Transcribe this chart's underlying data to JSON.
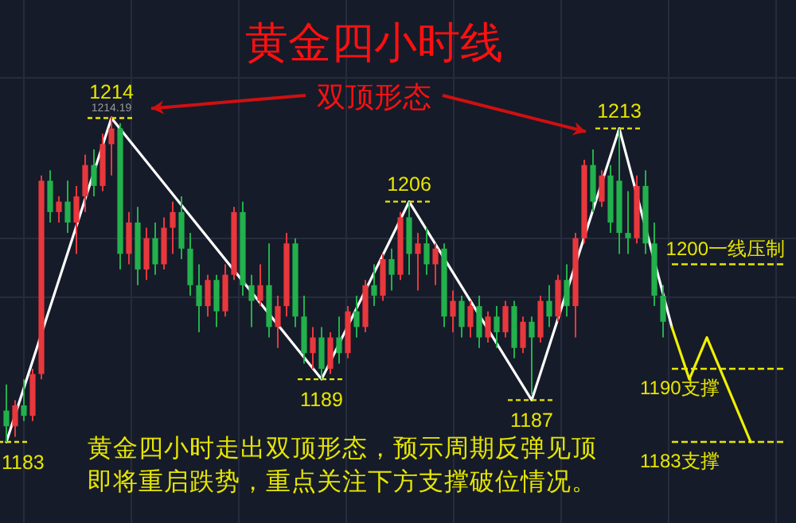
{
  "chart_data": {
    "type": "candlestick",
    "title": "黄金四小时线",
    "grid": true,
    "tick_labels": false,
    "categories": [
      null,
      null,
      null,
      null,
      null,
      null,
      null,
      null,
      null,
      null,
      null,
      null,
      null,
      null,
      null,
      null,
      null,
      null,
      null,
      null,
      null,
      null,
      null,
      null,
      null,
      null,
      null,
      null,
      null,
      null,
      null,
      null,
      null,
      null,
      null,
      null,
      null,
      null,
      null,
      null,
      null,
      null,
      null,
      null,
      null,
      null,
      null,
      null,
      null,
      null,
      null,
      null,
      null,
      null,
      null,
      null,
      null,
      null,
      null,
      null,
      null,
      null,
      null,
      null,
      null,
      null,
      null,
      null,
      null,
      null,
      null,
      null,
      null,
      null,
      null,
      null,
      null,
      null,
      null,
      null,
      null,
      null,
      null,
      null,
      null,
      null,
      null,
      null
    ],
    "ohlc": [
      [
        1186,
        1188.5,
        1183,
        1184.5
      ],
      [
        1184.5,
        1187,
        1183.5,
        1186.5
      ],
      [
        1186.5,
        1189,
        1185,
        1185.5
      ],
      [
        1185.5,
        1190,
        1185,
        1189.5
      ],
      [
        1189.5,
        1208.5,
        1189,
        1208
      ],
      [
        1208,
        1209,
        1204,
        1205
      ],
      [
        1205,
        1206.5,
        1204,
        1206
      ],
      [
        1206,
        1208,
        1203,
        1204
      ],
      [
        1204,
        1207.5,
        1201,
        1206.5
      ],
      [
        1206.5,
        1210.5,
        1205,
        1209.5
      ],
      [
        1209.5,
        1211,
        1206.5,
        1207.5
      ],
      [
        1207.5,
        1212.5,
        1207,
        1211.5
      ],
      [
        1211.5,
        1214.19,
        1208.5,
        1213
      ],
      [
        1213,
        1213.5,
        1199.5,
        1201
      ],
      [
        1201,
        1205,
        1200,
        1204
      ],
      [
        1204,
        1205.5,
        1198,
        1199.5
      ],
      [
        1199.5,
        1203.5,
        1198.5,
        1202.5
      ],
      [
        1202.5,
        1204,
        1199,
        1200
      ],
      [
        1200,
        1204.5,
        1199.5,
        1203.5
      ],
      [
        1203.5,
        1206,
        1201,
        1205
      ],
      [
        1205,
        1206.5,
        1200.5,
        1201.5
      ],
      [
        1201.5,
        1203,
        1197,
        1198
      ],
      [
        1198,
        1200,
        1193.5,
        1196
      ],
      [
        1196,
        1199,
        1195,
        1198.5
      ],
      [
        1198.5,
        1199,
        1194,
        1195.5
      ],
      [
        1195.5,
        1200,
        1195,
        1199
      ],
      [
        1199,
        1205.5,
        1198.5,
        1205
      ],
      [
        1205,
        1206,
        1197,
        1198
      ],
      [
        1198,
        1199,
        1194,
        1196.5
      ],
      [
        1196.5,
        1200,
        1196,
        1198
      ],
      [
        1198,
        1202,
        1193,
        1194
      ],
      [
        1194,
        1197,
        1192,
        1196
      ],
      [
        1196,
        1203,
        1195,
        1202
      ],
      [
        1202,
        1202.5,
        1194,
        1195
      ],
      [
        1195,
        1197,
        1190.5,
        1191.5
      ],
      [
        1191.5,
        1194,
        1190,
        1193
      ],
      [
        1193,
        1194,
        1189,
        1190
      ],
      [
        1190,
        1193.5,
        1189.5,
        1193
      ],
      [
        1193,
        1195,
        1190.5,
        1191.5
      ],
      [
        1191.5,
        1196,
        1191,
        1195.5
      ],
      [
        1195.5,
        1197,
        1193,
        1194
      ],
      [
        1194,
        1198.5,
        1193.5,
        1198
      ],
      [
        1198,
        1200,
        1196,
        1197
      ],
      [
        1197,
        1201,
        1196.5,
        1200.5
      ],
      [
        1200.5,
        1201.5,
        1197.5,
        1199
      ],
      [
        1199,
        1205,
        1198.5,
        1204.5
      ],
      [
        1204.5,
        1206,
        1199,
        1201
      ],
      [
        1201,
        1203,
        1197.5,
        1202
      ],
      [
        1202,
        1203.5,
        1199,
        1200
      ],
      [
        1200,
        1202,
        1198,
        1201.5
      ],
      [
        1201.5,
        1202,
        1194,
        1195
      ],
      [
        1195,
        1197.5,
        1193.5,
        1196.5
      ],
      [
        1196.5,
        1197,
        1193,
        1194
      ],
      [
        1194,
        1196.5,
        1193,
        1196
      ],
      [
        1196,
        1197,
        1192,
        1193
      ],
      [
        1193,
        1195.5,
        1192.5,
        1195
      ],
      [
        1195,
        1196,
        1192,
        1193.5
      ],
      [
        1193.5,
        1196.5,
        1193,
        1196
      ],
      [
        1196,
        1196.5,
        1191,
        1192
      ],
      [
        1192,
        1195,
        1191.5,
        1194.5
      ],
      [
        1194.5,
        1195,
        1187.5,
        1193
      ],
      [
        1193,
        1197,
        1192.5,
        1196.5
      ],
      [
        1196.5,
        1198,
        1194,
        1195
      ],
      [
        1195,
        1199,
        1194.5,
        1198.5
      ],
      [
        1198.5,
        1200,
        1195,
        1196
      ],
      [
        1196,
        1203,
        1193,
        1202.5
      ],
      [
        1202.5,
        1210,
        1202,
        1209.5
      ],
      [
        1209.5,
        1211,
        1205,
        1206
      ],
      [
        1206,
        1209,
        1205.5,
        1208.5
      ],
      [
        1208.5,
        1209.5,
        1203,
        1204
      ],
      [
        1208,
        1213,
        1201,
        1203
      ],
      [
        1203,
        1207,
        1201,
        1202.5
      ],
      [
        1202.5,
        1208.5,
        1202,
        1207.5
      ],
      [
        1207.5,
        1209,
        1201,
        1202
      ],
      [
        1202,
        1204,
        1196,
        1197
      ],
      [
        1197,
        1198,
        1193,
        1194.5
      ],
      null,
      null,
      null,
      null,
      null,
      null,
      null,
      null,
      null,
      null,
      null,
      null
    ],
    "colors": [
      "#22b14c",
      "#e8383d",
      "#22b14c",
      "#e8383d",
      "#e8383d",
      "#22b14c",
      "#e8383d",
      "#22b14c",
      "#e8383d",
      "#e8383d",
      "#22b14c",
      "#e8383d",
      "#e8383d",
      "#22b14c",
      "#e8383d",
      "#22b14c",
      "#e8383d",
      "#22b14c",
      "#e8383d",
      "#e8383d",
      "#22b14c",
      "#22b14c",
      "#22b14c",
      "#e8383d",
      "#22b14c",
      "#e8383d",
      "#e8383d",
      "#22b14c",
      "#22b14c",
      "#e8383d",
      "#22b14c",
      "#e8383d",
      "#e8383d",
      "#22b14c",
      "#22b14c",
      "#e8383d",
      "#22b14c",
      "#e8383d",
      "#22b14c",
      "#e8383d",
      "#22b14c",
      "#e8383d",
      "#22b14c",
      "#e8383d",
      "#22b14c",
      "#e8383d",
      "#22b14c",
      "#e8383d",
      "#22b14c",
      "#e8383d",
      "#22b14c",
      "#e8383d",
      "#22b14c",
      "#e8383d",
      "#22b14c",
      "#e8383d",
      "#22b14c",
      "#e8383d",
      "#22b14c",
      "#e8383d",
      "#22b14c",
      "#e8383d",
      "#22b14c",
      "#e8383d",
      "#22b14c",
      "#e8383d",
      "#e8383d",
      "#22b14c",
      "#e8383d",
      "#22b14c",
      "#22b14c",
      "#22b14c",
      "#e8383d",
      "#22b14c",
      "#22b14c",
      "#22b14c",
      null,
      null,
      null,
      null,
      null,
      null,
      null,
      null,
      null,
      null,
      null,
      null
    ],
    "series": [
      {
        "type": "line",
        "color": "#ffffff",
        "values": [
          1183,
          null,
          null,
          null,
          null,
          null,
          null,
          null,
          null,
          null,
          null,
          null,
          1214,
          null,
          null,
          null,
          null,
          null,
          null,
          null,
          null,
          null,
          null,
          null,
          null,
          null,
          null,
          null,
          null,
          null,
          null,
          null,
          null,
          null,
          null,
          null,
          1189,
          null,
          null,
          null,
          null,
          null,
          null,
          null,
          null,
          null,
          1206,
          null,
          null,
          null,
          null,
          null,
          null,
          null,
          null,
          null,
          null,
          null,
          null,
          null,
          1187,
          null,
          null,
          null,
          null,
          null,
          null,
          null,
          null,
          null,
          1213,
          null,
          null,
          null,
          null,
          null,
          1194,
          null,
          null,
          null,
          null,
          null,
          null,
          null,
          null,
          null,
          null,
          null
        ],
        "value_labels": [
          "1183",
          null,
          null,
          null,
          null,
          null,
          null,
          null,
          null,
          null,
          null,
          null,
          "1214",
          null,
          null,
          null,
          null,
          null,
          null,
          null,
          null,
          null,
          null,
          null,
          null,
          null,
          null,
          null,
          null,
          null,
          null,
          null,
          null,
          null,
          null,
          null,
          "1189",
          null,
          null,
          null,
          null,
          null,
          null,
          null,
          null,
          null,
          "1206",
          null,
          null,
          null,
          null,
          null,
          null,
          null,
          null,
          null,
          null,
          null,
          null,
          null,
          "1187",
          null,
          null,
          null,
          null,
          null,
          null,
          null,
          null,
          null,
          "1213",
          null,
          null,
          null,
          null,
          null,
          null,
          null,
          null,
          null,
          null,
          null,
          null,
          null,
          null,
          null,
          null,
          null
        ]
      },
      {
        "type": "line",
        "color": "#f0f000",
        "values": [
          null,
          null,
          null,
          null,
          null,
          null,
          null,
          null,
          null,
          null,
          null,
          null,
          null,
          null,
          null,
          null,
          null,
          null,
          null,
          null,
          null,
          null,
          null,
          null,
          null,
          null,
          null,
          null,
          null,
          null,
          null,
          null,
          null,
          null,
          null,
          null,
          null,
          null,
          null,
          null,
          null,
          null,
          null,
          null,
          null,
          null,
          null,
          null,
          null,
          null,
          null,
          null,
          null,
          null,
          null,
          null,
          null,
          null,
          null,
          null,
          null,
          null,
          null,
          null,
          null,
          null,
          null,
          null,
          null,
          null,
          null,
          null,
          null,
          null,
          null,
          null,
          1194,
          null,
          1189,
          null,
          1193,
          null,
          null,
          null,
          null,
          1183,
          null,
          null
        ]
      }
    ],
    "ref_lines": [
      {
        "axis": "y",
        "value": 1200,
        "label": "1200一线压制",
        "color": "#e6e600",
        "line_style": "dashed"
      },
      {
        "axis": "y",
        "value": 1190,
        "label": "1190支撑",
        "color": "#e6e600",
        "line_style": "dashed"
      },
      {
        "axis": "y",
        "value": 1183,
        "label": "1183支撑",
        "color": "#e6e600",
        "line_style": "dashed"
      }
    ],
    "annotations": [
      "双顶形态",
      {
        "text": "1214.19",
        "y": 1214.19
      },
      "黄金四小时走出双顶形态，预示周期反弹见顶即将重启跌势，重点关注下方支撑破位情况。"
    ]
  }
}
